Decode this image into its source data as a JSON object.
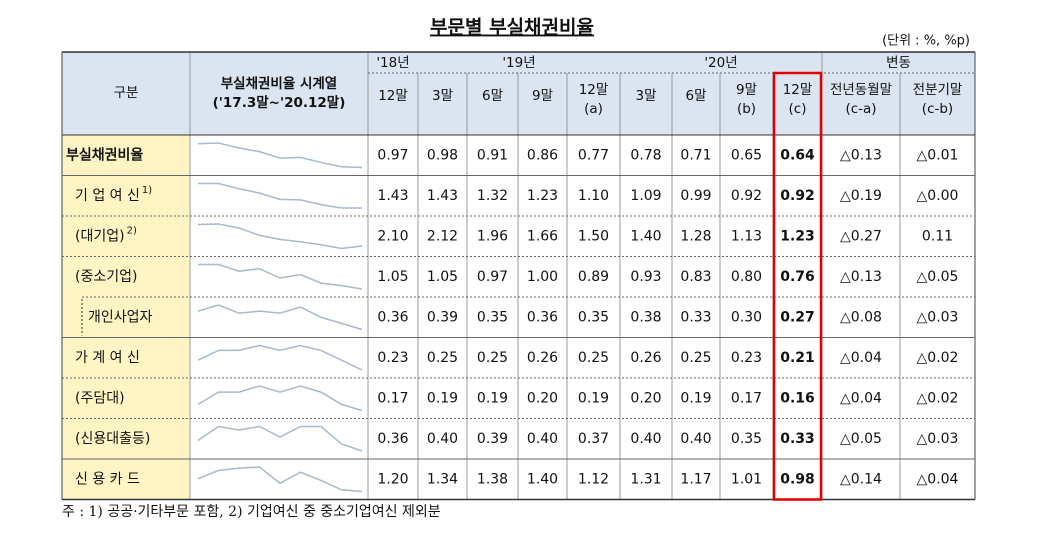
{
  "title": "부문별 부실채권비율",
  "unit": "(단위 : %, %p)",
  "header": {
    "category": "구분",
    "spark_title": "부실채권비율 시계열",
    "spark_range": "('17.3말~'20.12말)",
    "years": [
      "'18년",
      "'19년",
      "'20년"
    ],
    "change": "변동",
    "columns": [
      {
        "label": "12말"
      },
      {
        "label": "3말"
      },
      {
        "label": "6말"
      },
      {
        "label": "9말"
      },
      {
        "label": "12말",
        "sub": "(a)"
      },
      {
        "label": "3말"
      },
      {
        "label": "6말"
      },
      {
        "label": "9말",
        "sub": "(b)"
      },
      {
        "label": "12말",
        "sub": "(c)"
      },
      {
        "label": "전년동월말",
        "sub": "(c-a)"
      },
      {
        "label": "전분기말",
        "sub": "(c-b)"
      }
    ]
  },
  "rows": [
    {
      "label": "부실채권비율",
      "values": [
        "0.97",
        "0.98",
        "0.91",
        "0.86",
        "0.77",
        "0.78",
        "0.71",
        "0.65",
        "0.64",
        "△0.13",
        "△0.01"
      ]
    },
    {
      "label": "기 업 여 신",
      "note": "1)",
      "values": [
        "1.43",
        "1.43",
        "1.32",
        "1.23",
        "1.10",
        "1.09",
        "0.99",
        "0.92",
        "0.92",
        "△0.19",
        "△0.00"
      ]
    },
    {
      "label": "(대기업)",
      "note": "2)",
      "values": [
        "2.10",
        "2.12",
        "1.96",
        "1.66",
        "1.50",
        "1.40",
        "1.28",
        "1.13",
        "1.23",
        "△0.27",
        "0.11"
      ]
    },
    {
      "label": "(중소기업)",
      "values": [
        "1.05",
        "1.05",
        "0.97",
        "1.00",
        "0.89",
        "0.93",
        "0.83",
        "0.80",
        "0.76",
        "△0.13",
        "△0.05"
      ]
    },
    {
      "label": "개인사업자",
      "values": [
        "0.36",
        "0.39",
        "0.35",
        "0.36",
        "0.35",
        "0.38",
        "0.33",
        "0.30",
        "0.27",
        "△0.08",
        "△0.03"
      ]
    },
    {
      "label": "가 계 여 신",
      "values": [
        "0.23",
        "0.25",
        "0.25",
        "0.26",
        "0.25",
        "0.26",
        "0.25",
        "0.23",
        "0.21",
        "△0.04",
        "△0.02"
      ]
    },
    {
      "label": "(주담대)",
      "values": [
        "0.17",
        "0.19",
        "0.19",
        "0.20",
        "0.19",
        "0.20",
        "0.19",
        "0.17",
        "0.16",
        "△0.04",
        "△0.02"
      ]
    },
    {
      "label": "(신용대출등)",
      "values": [
        "0.36",
        "0.40",
        "0.39",
        "0.40",
        "0.37",
        "0.40",
        "0.40",
        "0.35",
        "0.33",
        "△0.05",
        "△0.03"
      ]
    },
    {
      "label": "신 용 카 드",
      "values": [
        "1.20",
        "1.34",
        "1.38",
        "1.40",
        "1.12",
        "1.31",
        "1.17",
        "1.01",
        "0.98",
        "△0.14",
        "△0.04"
      ]
    }
  ],
  "footnote": "주 : 1) 공공·기타부문 포함, 2) 기업여신 중 중소기업여신 제외분"
}
